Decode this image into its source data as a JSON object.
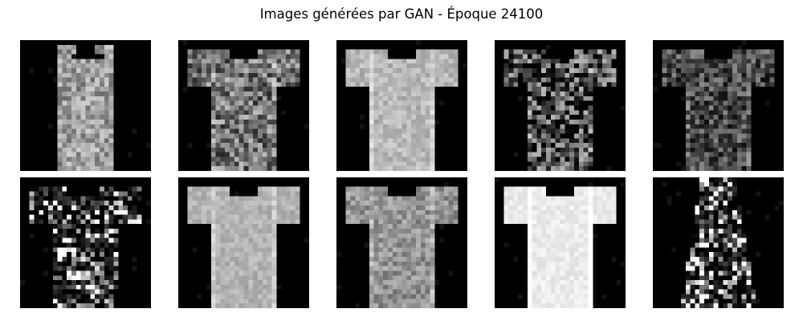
{
  "title": "Images générées par GAN - Époque 24100",
  "grid": {
    "rows": 2,
    "cols": 5,
    "background": "#ffffff",
    "image_background": "#000000"
  },
  "images": [
    {
      "id": "r1c1",
      "garment": "t-shirt",
      "brightness": 0.62,
      "sleeves": 0.1,
      "noise": 0.2,
      "shape": "tank"
    },
    {
      "id": "r1c2",
      "garment": "t-shirt",
      "brightness": 0.45,
      "sleeves": 0.75,
      "noise": 0.3,
      "shape": "tee"
    },
    {
      "id": "r1c3",
      "garment": "t-shirt",
      "brightness": 0.72,
      "sleeves": 0.85,
      "noise": 0.1,
      "shape": "tee"
    },
    {
      "id": "r1c4",
      "garment": "t-shirt",
      "brightness": 0.28,
      "sleeves": 0.8,
      "noise": 0.45,
      "shape": "tee"
    },
    {
      "id": "r1c5",
      "garment": "t-shirt",
      "brightness": 0.3,
      "sleeves": 0.8,
      "noise": 0.25,
      "shape": "tee"
    },
    {
      "id": "r2c1",
      "garment": "t-shirt",
      "brightness": 0.35,
      "sleeves": 0.85,
      "noise": 0.8,
      "shape": "blob"
    },
    {
      "id": "r2c2",
      "garment": "t-shirt",
      "brightness": 0.7,
      "sleeves": 0.85,
      "noise": 0.08,
      "shape": "tee"
    },
    {
      "id": "r2c3",
      "garment": "t-shirt",
      "brightness": 0.58,
      "sleeves": 0.85,
      "noise": 0.15,
      "shape": "tee"
    },
    {
      "id": "r2c4",
      "garment": "t-shirt",
      "brightness": 0.92,
      "sleeves": 0.85,
      "noise": 0.05,
      "shape": "tee"
    },
    {
      "id": "r2c5",
      "garment": "t-shirt",
      "brightness": 0.5,
      "sleeves": 0.05,
      "noise": 0.9,
      "shape": "dress"
    }
  ]
}
